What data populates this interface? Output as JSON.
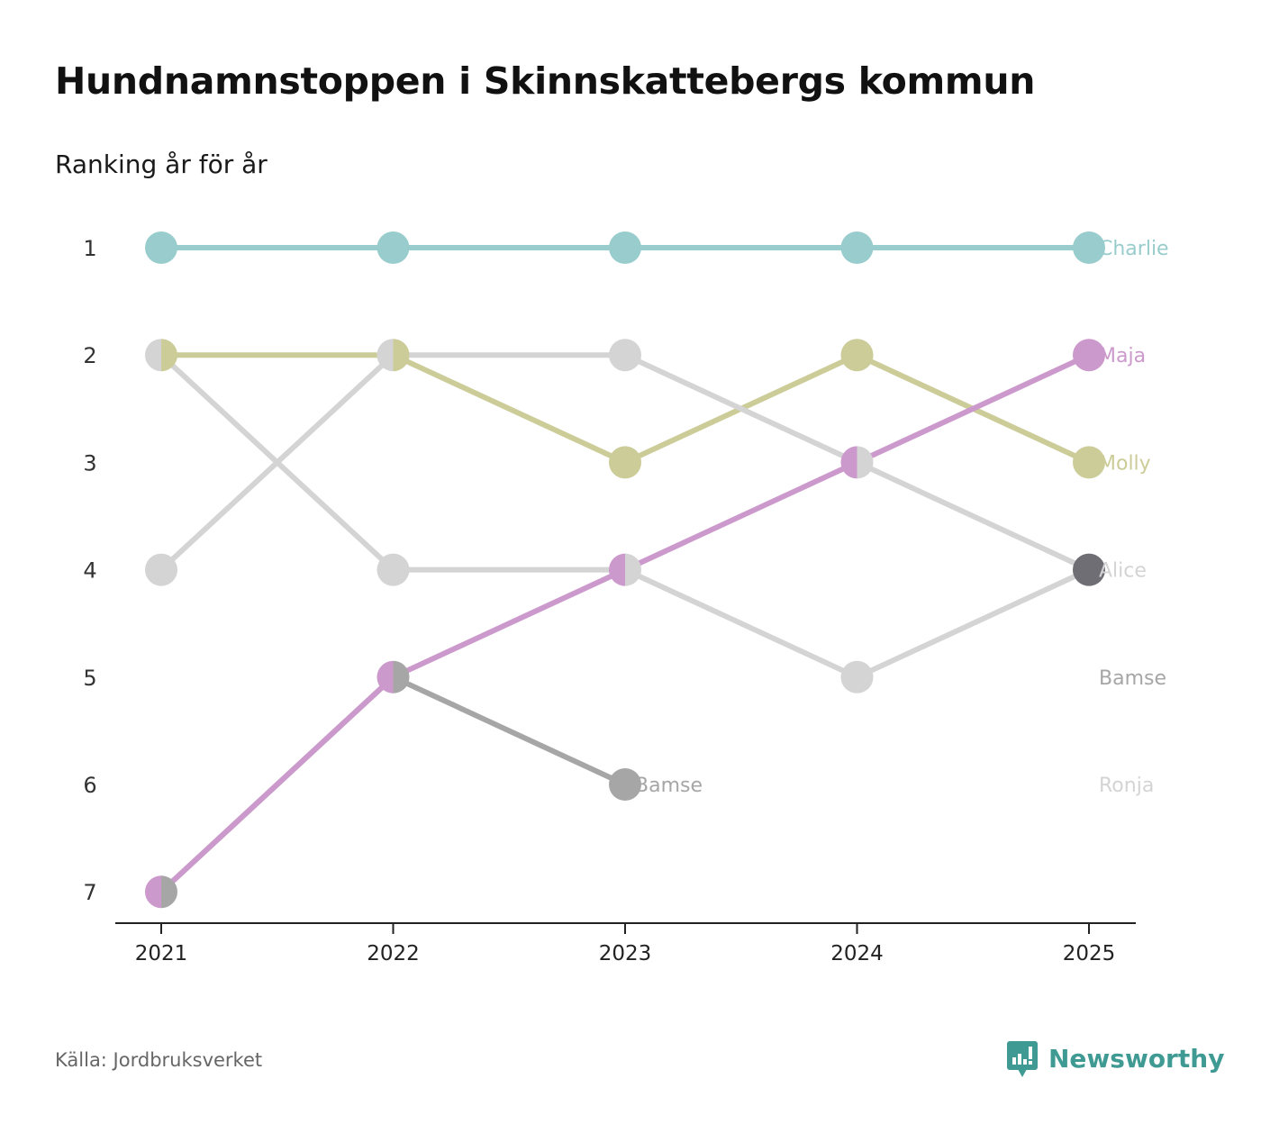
{
  "title": "Hundnamnstoppen i Skinnskattebergs kommun",
  "subtitle": "Ranking år för år",
  "source": "Källa: Jordbruksverket",
  "brand": "Newsworthy",
  "brand_color": "#3f9a93",
  "chart_data": {
    "type": "line",
    "subtype": "bump",
    "x": [
      "2021",
      "2022",
      "2023",
      "2024",
      "2025"
    ],
    "ylim": [
      1,
      7
    ],
    "y_ticks": [
      "1",
      "2",
      "3",
      "4",
      "5",
      "6",
      "7"
    ],
    "y_reversed": true,
    "series": [
      {
        "name": "Charlie",
        "color": "#99cccc",
        "values": [
          1,
          1,
          1,
          1,
          1
        ],
        "label": "Charlie",
        "label_at": 4
      },
      {
        "name": "Molly",
        "color": "#cccc99",
        "values": [
          2,
          2,
          3,
          2,
          3
        ],
        "label": "Molly",
        "label_at": 4
      },
      {
        "name": "Alice",
        "color": "#d4d4d4",
        "values": [
          4,
          2,
          2,
          3,
          4
        ],
        "label": "Alice",
        "label_at": 4
      },
      {
        "name": "Ronja",
        "color": "#d4d4d4",
        "values": [
          2,
          4,
          4,
          5,
          4
        ],
        "label": "Ronja",
        "label_at": 4,
        "label_rank": 6
      },
      {
        "name": "Bamse",
        "color": "#a6a6a6",
        "values": [
          7,
          5,
          6,
          null,
          null
        ],
        "label": "Bamse",
        "label_at": 2
      },
      {
        "name": "Bamse 2025",
        "color": "#a6a6a6",
        "values": [
          null,
          null,
          null,
          null,
          null
        ],
        "label": "Bamse",
        "label_at": 4,
        "label_rank": 5
      },
      {
        "name": "Maja",
        "color": "#cc99cc",
        "values": [
          7,
          5,
          4,
          3,
          2
        ],
        "label": "Maja",
        "label_at": 4
      }
    ],
    "special_points": [
      {
        "series": "Alice",
        "x_index": 4,
        "color": "#6e6e74"
      }
    ]
  }
}
